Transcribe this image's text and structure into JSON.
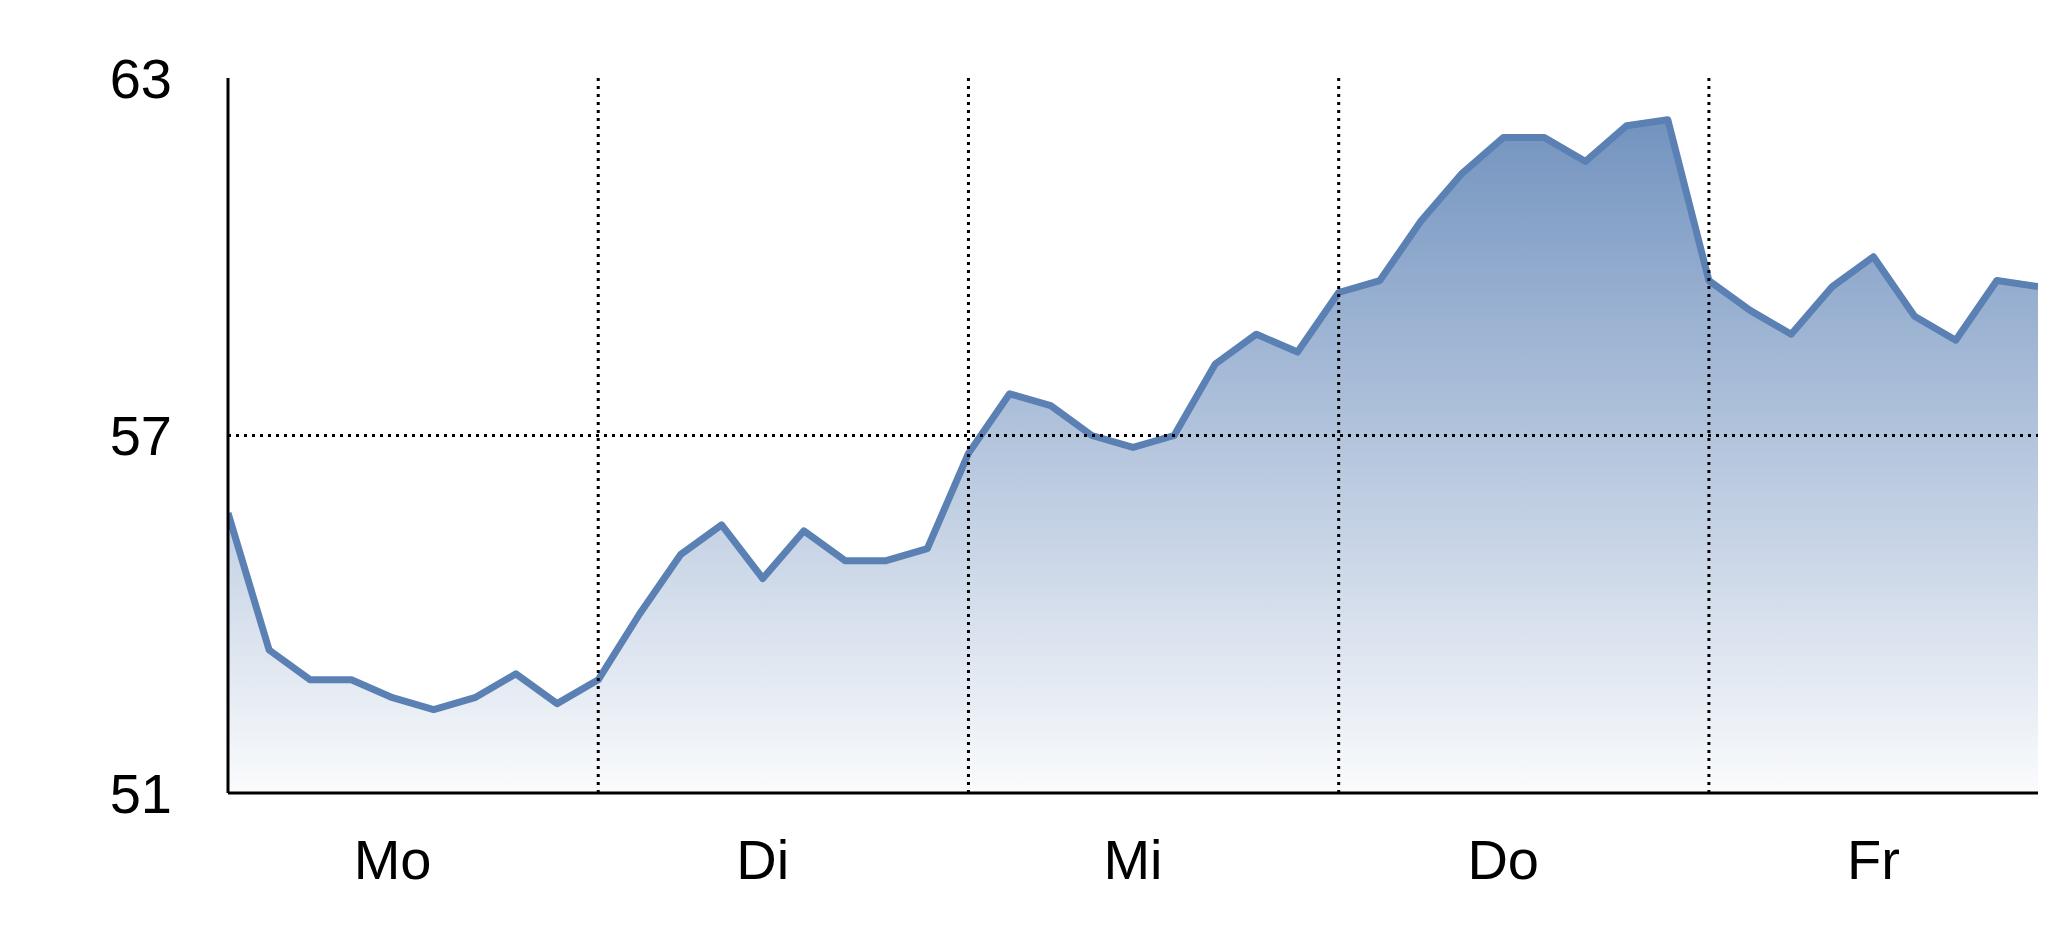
{
  "chart_data": {
    "type": "area",
    "categories": [
      null,
      null,
      null,
      null,
      "Mo",
      null,
      null,
      null,
      null,
      null,
      null,
      null,
      null,
      "Di",
      null,
      null,
      null,
      null,
      null,
      null,
      null,
      null,
      "Mi",
      null,
      null,
      null,
      null,
      null,
      null,
      null,
      null,
      "Do",
      null,
      null,
      null,
      null,
      null,
      null,
      null,
      null,
      "Fr",
      null,
      null,
      null,
      null
    ],
    "series": [
      {
        "color": "#5a80b4",
        "values": [
          55.7,
          53.4,
          52.9,
          52.9,
          52.6,
          52.4,
          52.6,
          53.0,
          52.5,
          52.9,
          54.0,
          55.0,
          55.5,
          54.6,
          55.4,
          54.9,
          54.9,
          55.1,
          56.7,
          57.7,
          57.5,
          57.0,
          56.8,
          57.0,
          58.2,
          58.7,
          58.4,
          59.4,
          59.6,
          60.6,
          61.4,
          62.0,
          62.0,
          61.6,
          62.2,
          62.3,
          59.6,
          59.1,
          58.7,
          59.5,
          60.0,
          59.0,
          58.6,
          59.6,
          59.5
        ]
      }
    ],
    "ylim": [
      51,
      63
    ],
    "yticks": [
      51,
      57,
      63
    ],
    "grid": true
  }
}
